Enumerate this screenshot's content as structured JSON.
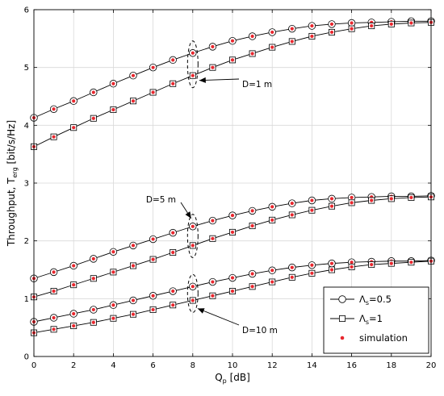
{
  "chart_data": {
    "type": "line",
    "xlabel_main": "Q",
    "xlabel_sub": "p",
    "xlabel_rest": " [dB]",
    "ylabel_main": "Throughput, T",
    "ylabel_sub": "erg",
    "ylabel_rest": " [bit/s/Hz]",
    "xlim": [
      0,
      20
    ],
    "ylim": [
      0,
      6
    ],
    "xticks": [
      0,
      2,
      4,
      6,
      8,
      10,
      12,
      14,
      16,
      18,
      20
    ],
    "yticks": [
      0,
      1,
      2,
      3,
      4,
      5,
      6
    ],
    "grid": true,
    "legend_position": "bottom-right",
    "x": [
      0,
      1,
      2,
      3,
      4,
      5,
      6,
      7,
      8,
      9,
      10,
      11,
      12,
      13,
      14,
      15,
      16,
      17,
      18,
      19,
      20
    ],
    "series": [
      {
        "group": "D1",
        "marker": "circle",
        "values": [
          4.13,
          4.28,
          4.42,
          4.57,
          4.72,
          4.86,
          5.0,
          5.13,
          5.25,
          5.36,
          5.46,
          5.54,
          5.61,
          5.67,
          5.72,
          5.75,
          5.77,
          5.78,
          5.79,
          5.8,
          5.8
        ]
      },
      {
        "group": "D1",
        "marker": "square",
        "values": [
          3.63,
          3.8,
          3.96,
          4.12,
          4.27,
          4.42,
          4.57,
          4.72,
          4.86,
          5.0,
          5.13,
          5.24,
          5.35,
          5.45,
          5.54,
          5.61,
          5.67,
          5.72,
          5.75,
          5.77,
          5.78
        ]
      },
      {
        "group": "D5",
        "marker": "circle",
        "values": [
          1.35,
          1.46,
          1.57,
          1.69,
          1.81,
          1.92,
          2.03,
          2.14,
          2.25,
          2.35,
          2.44,
          2.52,
          2.59,
          2.65,
          2.7,
          2.73,
          2.75,
          2.76,
          2.77,
          2.77,
          2.78
        ]
      },
      {
        "group": "D5",
        "marker": "square",
        "values": [
          1.03,
          1.13,
          1.24,
          1.35,
          1.46,
          1.57,
          1.68,
          1.8,
          1.92,
          2.04,
          2.15,
          2.26,
          2.36,
          2.45,
          2.53,
          2.6,
          2.66,
          2.7,
          2.73,
          2.75,
          2.76
        ]
      },
      {
        "group": "D10",
        "marker": "circle",
        "values": [
          0.6,
          0.67,
          0.74,
          0.81,
          0.89,
          0.97,
          1.05,
          1.13,
          1.21,
          1.29,
          1.36,
          1.43,
          1.49,
          1.54,
          1.58,
          1.61,
          1.63,
          1.64,
          1.65,
          1.65,
          1.66
        ]
      },
      {
        "group": "D10",
        "marker": "square",
        "values": [
          0.41,
          0.47,
          0.53,
          0.59,
          0.66,
          0.73,
          0.81,
          0.89,
          0.97,
          1.05,
          1.13,
          1.21,
          1.29,
          1.37,
          1.44,
          1.5,
          1.55,
          1.59,
          1.61,
          1.63,
          1.65
        ]
      }
    ],
    "annotations": [
      {
        "label": "D=1 m",
        "x": 8,
        "y_low": 4.86,
        "y_high": 5.25
      },
      {
        "label": "D=5 m",
        "x": 8,
        "y_low": 1.92,
        "y_high": 2.25
      },
      {
        "label": "D=10 m",
        "x": 8,
        "y_low": 0.97,
        "y_high": 1.21
      }
    ],
    "legend": [
      {
        "marker": "circle",
        "label_main": "Λ",
        "label_sub": "s",
        "label_rest": "=0.5"
      },
      {
        "marker": "square",
        "label_main": "Λ",
        "label_sub": "s",
        "label_rest": "=1"
      },
      {
        "marker": "dot",
        "label_main": "simulation",
        "label_sub": "",
        "label_rest": ""
      }
    ],
    "colors": {
      "line": "#000000",
      "simulation": "#e8272e",
      "grid": "#d9d9d9"
    }
  }
}
